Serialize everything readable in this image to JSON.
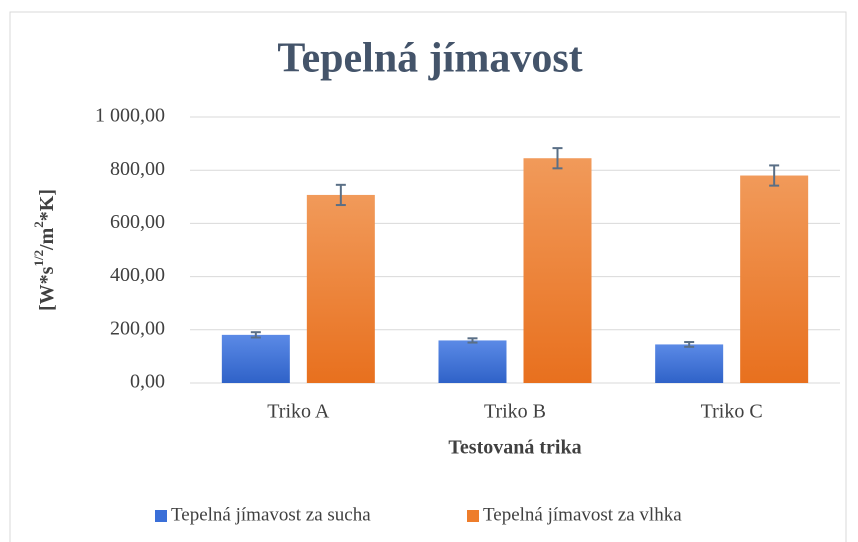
{
  "chart_data": {
    "type": "bar",
    "title": "Tepelná jímavost",
    "ylabel": [
      "[W*s",
      "1/2",
      "/m",
      "2",
      "*K]"
    ],
    "xlabel": "Testovaná trika",
    "categories": [
      "Triko A",
      "Triko B",
      "Triko C"
    ],
    "series": [
      {
        "name": "Tepelná jímavost za sucha",
        "color": "#3a6fd8",
        "values": [
          181,
          160,
          145
        ],
        "errors": [
          10,
          8,
          9
        ]
      },
      {
        "name": "Tepelná jímavost za vlhka",
        "color": "#ee7d2b",
        "values": [
          707,
          845,
          780
        ],
        "errors": [
          38,
          38,
          38
        ]
      }
    ],
    "ylim": [
      0,
      1000
    ],
    "yticks": [
      {
        "value": 0,
        "label": "0,00"
      },
      {
        "value": 200,
        "label": "200,00"
      },
      {
        "value": 400,
        "label": "400,00"
      },
      {
        "value": 600,
        "label": "600,00"
      },
      {
        "value": 800,
        "label": "800,00"
      },
      {
        "value": 1000,
        "label": "1 000,00"
      }
    ],
    "grid": true,
    "legend": "bottom"
  }
}
